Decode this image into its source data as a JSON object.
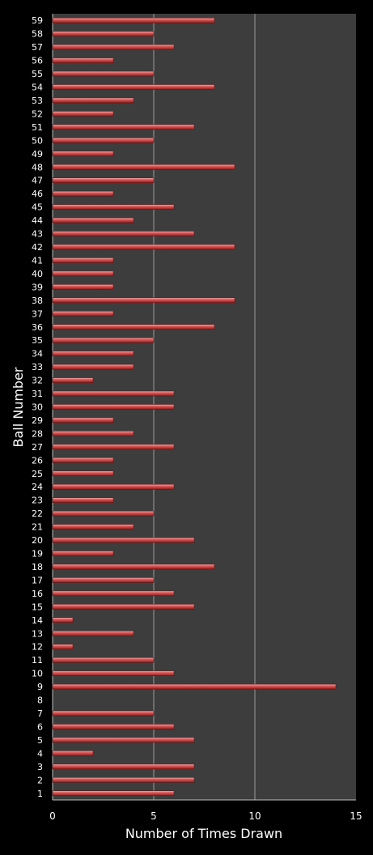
{
  "chart_data": {
    "type": "bar",
    "orientation": "horizontal",
    "xlabel": "Number of Times Drawn",
    "ylabel": "Ball Number",
    "xlim": [
      0,
      15
    ],
    "xticks": [
      "0",
      "5",
      "10",
      "15"
    ],
    "grid": true,
    "categories": [
      "1",
      "2",
      "3",
      "4",
      "5",
      "6",
      "7",
      "8",
      "9",
      "10",
      "11",
      "12",
      "13",
      "14",
      "15",
      "16",
      "17",
      "18",
      "19",
      "20",
      "21",
      "22",
      "23",
      "24",
      "25",
      "26",
      "27",
      "28",
      "29",
      "30",
      "31",
      "32",
      "33",
      "34",
      "35",
      "36",
      "37",
      "38",
      "39",
      "40",
      "41",
      "42",
      "43",
      "44",
      "45",
      "46",
      "47",
      "48",
      "49",
      "50",
      "51",
      "52",
      "53",
      "54",
      "55",
      "56",
      "57",
      "58",
      "59"
    ],
    "values": [
      6,
      7,
      7,
      2,
      7,
      6,
      5,
      0,
      14,
      6,
      5,
      1,
      4,
      1,
      7,
      6,
      5,
      8,
      3,
      7,
      4,
      5,
      3,
      6,
      3,
      3,
      6,
      4,
      3,
      6,
      6,
      2,
      4,
      4,
      5,
      8,
      3,
      9,
      3,
      3,
      3,
      9,
      7,
      4,
      6,
      3,
      5,
      9,
      3,
      5,
      7,
      3,
      4,
      8,
      5,
      3,
      6,
      5,
      8
    ],
    "colors": {
      "background": "#000000",
      "plot_area": "#3d3d3d",
      "bar_fill": "#e05a5a",
      "bar_highlight": "#f4a0a0",
      "bar_shadow": "#8a1f1f",
      "gridline": "#9a9a9a",
      "text": "#ffffff"
    }
  }
}
